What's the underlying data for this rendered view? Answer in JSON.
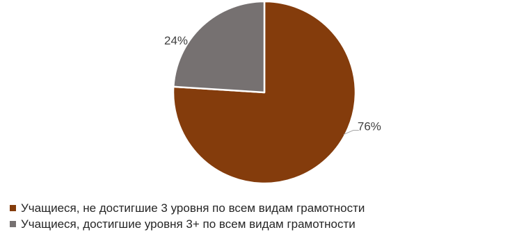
{
  "chart_data": {
    "type": "pie",
    "title": "",
    "categories": [
      "Учащиеся, не достигшие 3 уровня по всем видам грамотности",
      "Учащиеся, достигшие уровня 3+  по всем видам грамотности"
    ],
    "values": [
      76,
      24
    ],
    "data_labels": [
      "76%",
      "24%"
    ],
    "colors": [
      "#843C0C",
      "#767171"
    ],
    "start_angle_deg": 0,
    "direction": "clockwise",
    "legend_position": "bottom"
  }
}
